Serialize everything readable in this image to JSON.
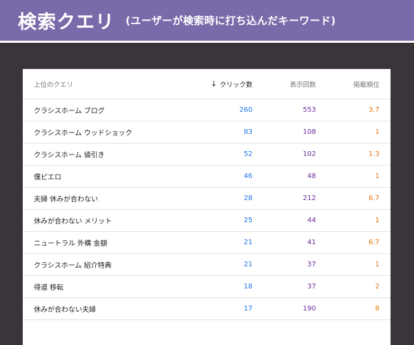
{
  "banner": {
    "title": "検索クエリ",
    "subtitle": "(ユーザーが検索時に打ち込んだキーワード)"
  },
  "colors": {
    "banner_bg": "#7a6aaa",
    "clicks": "#1a73e8",
    "impressions": "#6b2c9c",
    "position": "#e8710a"
  },
  "table": {
    "headers": {
      "query": "上位のクエリ",
      "sort_icon": "↓",
      "clicks": "クリック数",
      "impressions": "表示回数",
      "position": "掲載順位"
    },
    "rows": [
      {
        "query": "クラシスホーム ブログ",
        "clicks": "260",
        "impressions": "553",
        "position": "3.7"
      },
      {
        "query": "クラシスホーム ウッドショック",
        "clicks": "83",
        "impressions": "108",
        "position": "1"
      },
      {
        "query": "クラシスホーム 値引き",
        "clicks": "52",
        "impressions": "102",
        "position": "1.3"
      },
      {
        "query": "僕ピエロ",
        "clicks": "46",
        "impressions": "48",
        "position": "1"
      },
      {
        "query": "夫婦 休みが合わない",
        "clicks": "28",
        "impressions": "212",
        "position": "6.7"
      },
      {
        "query": "休みが合わない メリット",
        "clicks": "25",
        "impressions": "44",
        "position": "1"
      },
      {
        "query": "ニュートラル 外構 金額",
        "clicks": "21",
        "impressions": "41",
        "position": "6.7"
      },
      {
        "query": "クラシスホーム 紹介特典",
        "clicks": "21",
        "impressions": "37",
        "position": "1"
      },
      {
        "query": "得道 移転",
        "clicks": "18",
        "impressions": "37",
        "position": "2"
      },
      {
        "query": "休みが合わない夫婦",
        "clicks": "17",
        "impressions": "190",
        "position": "8"
      }
    ]
  }
}
